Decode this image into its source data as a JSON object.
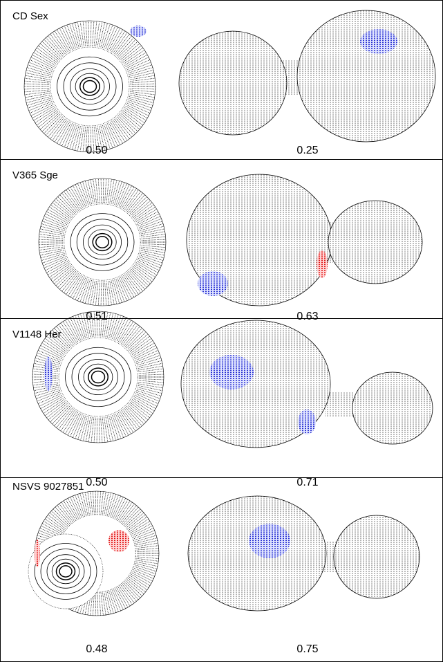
{
  "panels": [
    {
      "name": "CD Sex",
      "phases": [
        "0.50",
        "0.25"
      ]
    },
    {
      "name": "V365 Sge",
      "phases": [
        "0.51",
        "0.63"
      ]
    },
    {
      "name": "V1148 Her",
      "phases": [
        "0.50",
        "0.71"
      ]
    },
    {
      "name": "NSVS 9027851",
      "phases": [
        "0.48",
        "0.75"
      ]
    }
  ]
}
